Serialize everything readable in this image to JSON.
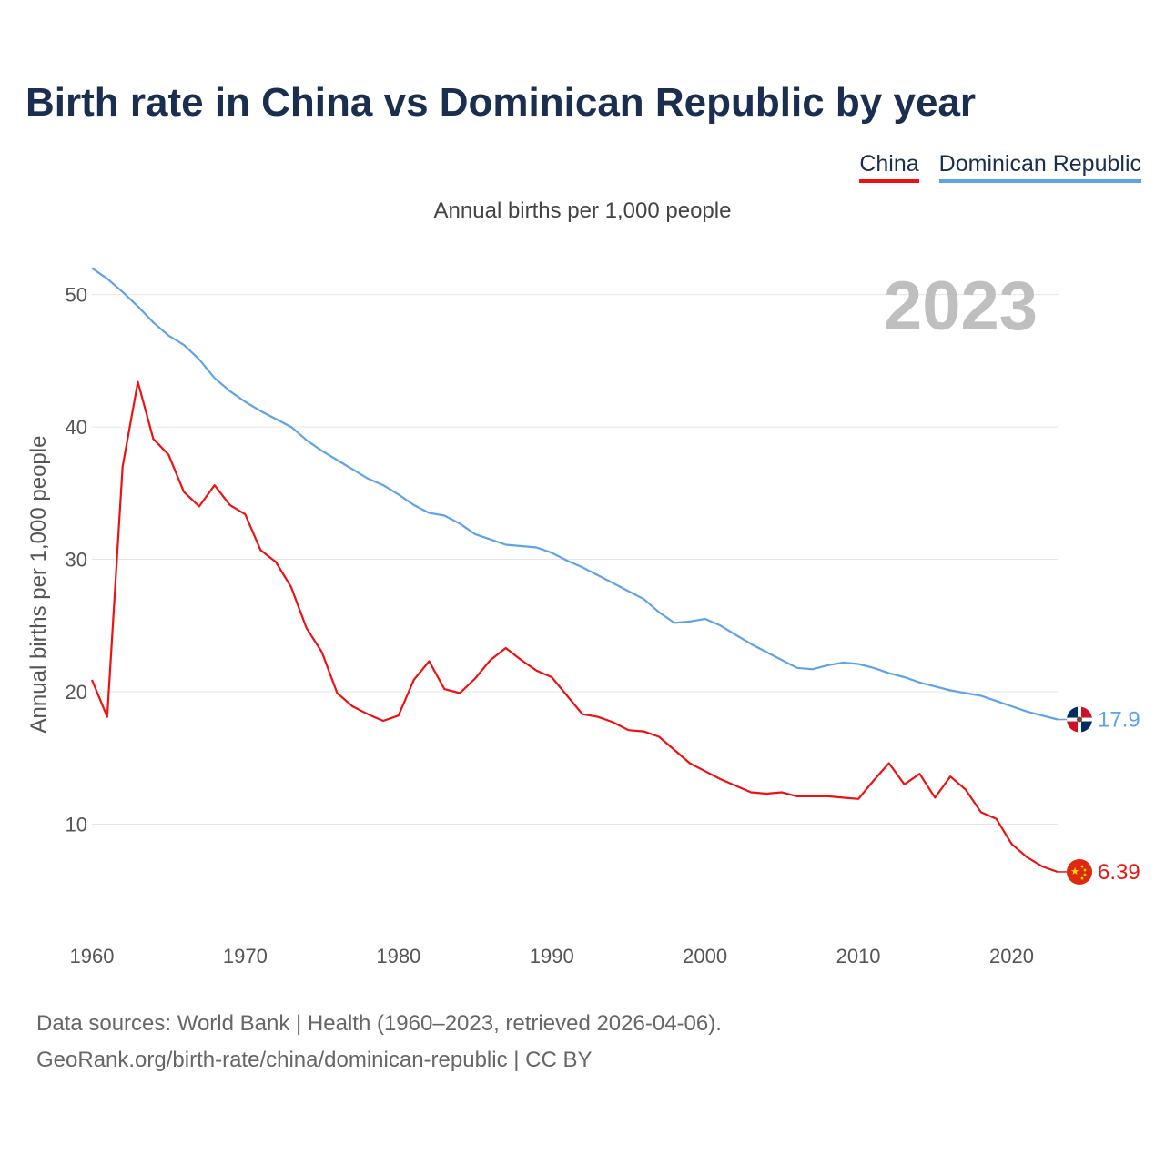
{
  "header": {
    "title": "Birth rate in China vs Dominican Republic by year",
    "subtitle": "Annual births per 1,000 people"
  },
  "legend": [
    {
      "label": "China",
      "color": "#ee1111"
    },
    {
      "label": "Dominican Republic",
      "color": "#5fa3e6"
    }
  ],
  "footer": {
    "source_line1": "Data sources: World Bank | Health (1960–2023, retrieved 2026-04-06).",
    "source_line2": "GeoRank.org/birth-rate/china/dominican-republic | CC BY"
  },
  "chart_data": {
    "type": "line",
    "title": "Birth rate in China vs Dominican Republic by year",
    "ylabel": "Annual births per 1,000 people",
    "xlabel": "",
    "year_label": "2023",
    "xlim": [
      1960,
      2023
    ],
    "ylim": [
      3.5,
      53
    ],
    "xticks": [
      1960,
      1970,
      1980,
      1990,
      2000,
      2010,
      2020
    ],
    "yticks": [
      10,
      20,
      30,
      40,
      50
    ],
    "x": [
      1960,
      1961,
      1962,
      1963,
      1964,
      1965,
      1966,
      1967,
      1968,
      1969,
      1970,
      1971,
      1972,
      1973,
      1974,
      1975,
      1976,
      1977,
      1978,
      1979,
      1980,
      1981,
      1982,
      1983,
      1984,
      1985,
      1986,
      1987,
      1988,
      1989,
      1990,
      1991,
      1992,
      1993,
      1994,
      1995,
      1996,
      1997,
      1998,
      1999,
      2000,
      2001,
      2002,
      2003,
      2004,
      2005,
      2006,
      2007,
      2008,
      2009,
      2010,
      2011,
      2012,
      2013,
      2014,
      2015,
      2016,
      2017,
      2018,
      2019,
      2020,
      2021,
      2022,
      2023
    ],
    "series": [
      {
        "name": "China",
        "color": "#ee1111",
        "end_label": "6.39",
        "values": [
          20.9,
          18.1,
          37.0,
          43.4,
          39.1,
          37.9,
          35.1,
          34.0,
          35.6,
          34.1,
          33.4,
          30.7,
          29.8,
          27.9,
          24.8,
          23.0,
          19.9,
          18.9,
          18.3,
          17.8,
          18.2,
          20.9,
          22.3,
          20.2,
          19.9,
          21.0,
          22.4,
          23.3,
          22.4,
          21.6,
          21.1,
          19.7,
          18.3,
          18.1,
          17.7,
          17.1,
          17.0,
          16.6,
          15.6,
          14.6,
          14.0,
          13.4,
          12.9,
          12.4,
          12.3,
          12.4,
          12.1,
          12.1,
          12.1,
          12.0,
          11.9,
          13.3,
          14.6,
          13.0,
          13.8,
          12.0,
          13.6,
          12.6,
          10.9,
          10.4,
          8.5,
          7.5,
          6.8,
          6.39
        ]
      },
      {
        "name": "Dominican Republic",
        "color": "#5fa3e6",
        "end_label": "17.9",
        "values": [
          52.0,
          51.2,
          50.2,
          49.1,
          47.9,
          46.9,
          46.2,
          45.1,
          43.7,
          42.7,
          41.9,
          41.2,
          40.6,
          40.0,
          39.0,
          38.2,
          37.5,
          36.8,
          36.1,
          35.6,
          34.9,
          34.1,
          33.5,
          33.3,
          32.7,
          31.9,
          31.5,
          31.1,
          31.0,
          30.9,
          30.5,
          29.9,
          29.4,
          28.8,
          28.2,
          27.6,
          27.0,
          26.0,
          25.2,
          25.3,
          25.5,
          25.0,
          24.3,
          23.6,
          23.0,
          22.4,
          21.8,
          21.7,
          22.0,
          22.2,
          22.1,
          21.8,
          21.4,
          21.1,
          20.7,
          20.4,
          20.1,
          19.9,
          19.7,
          19.3,
          18.9,
          18.5,
          18.2,
          17.9
        ]
      }
    ]
  }
}
